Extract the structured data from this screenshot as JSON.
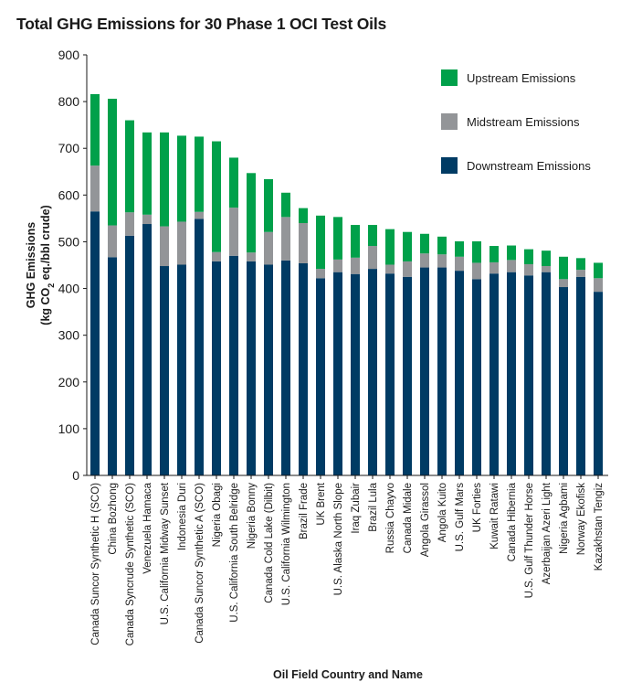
{
  "chart_data": {
    "type": "bar",
    "stacked": true,
    "title": "Total GHG Emissions for 30 Phase 1 OCI Test Oils",
    "xlabel": "Oil Field Country and Name",
    "ylabel_line1": "GHG Emissions",
    "ylabel_line2_pre": "(kg CO",
    "ylabel_line2_sub": "2",
    "ylabel_line2_post": " eq./bbl crude)",
    "ylim": [
      0,
      900
    ],
    "yticks": [
      "0",
      "100",
      "200",
      "300",
      "400",
      "500",
      "600",
      "700",
      "800",
      "900"
    ],
    "grid": false,
    "legend_position": "top-right",
    "categories": [
      "Canada Suncor Synthetic H (SCO)",
      "China Bozhong",
      "Canada Syncrude Synthetic (SCO)",
      "Venezuela Hamaca",
      "U.S. California Midway Sunset",
      "Indonesia Duri",
      "Canada Suncor Synthetic A (SCO)",
      "Nigeria Obagi",
      "U.S. California South Belridge",
      "Nigeria Bonny",
      "Canada Cold Lake (Dilbit)",
      "U.S. California Wilmington",
      "Brazil Frade",
      "UK Brent",
      "U.S. Alaska North Slope",
      "Iraq Zubair",
      "Brazil Lula",
      "Russia Chayvo",
      "Canada Midale",
      "Angola Girassol",
      "Angola Kuito",
      "U.S. Gulf Mars",
      "UK Forties",
      "Kuwait Ratawi",
      "Canada Hibernia",
      "U.S. Gulf Thunder Horse",
      "Azerbaijan Azeri Light",
      "Nigeria Agbami",
      "Norway Ekofisk",
      "Kazakhstan Tengiz"
    ],
    "series": [
      {
        "name": "Downstream Emissions",
        "color": "#003b64",
        "values": [
          565,
          467,
          513,
          538,
          448,
          451,
          549,
          458,
          470,
          458,
          451,
          460,
          454,
          422,
          435,
          431,
          442,
          432,
          425,
          445,
          445,
          438,
          420,
          432,
          435,
          428,
          435,
          403,
          425,
          393
        ]
      },
      {
        "name": "Midstream Emissions",
        "color": "#939598",
        "values": [
          98,
          68,
          50,
          20,
          85,
          92,
          15,
          20,
          103,
          19,
          70,
          93,
          86,
          20,
          27,
          35,
          49,
          19,
          33,
          30,
          28,
          30,
          35,
          24,
          26,
          24,
          13,
          17,
          15,
          29
        ]
      },
      {
        "name": "Upstream Emissions",
        "color": "#00a04a",
        "values": [
          153,
          271,
          197,
          176,
          201,
          184,
          161,
          237,
          107,
          170,
          113,
          52,
          32,
          114,
          91,
          70,
          45,
          76,
          63,
          42,
          38,
          33,
          46,
          35,
          31,
          32,
          33,
          48,
          25,
          33
        ]
      }
    ],
    "legend": [
      {
        "label": "Upstream Emissions",
        "color": "#00a04a"
      },
      {
        "label": "Midstream Emissions",
        "color": "#939598"
      },
      {
        "label": "Downstream Emissions",
        "color": "#003b64"
      }
    ]
  }
}
